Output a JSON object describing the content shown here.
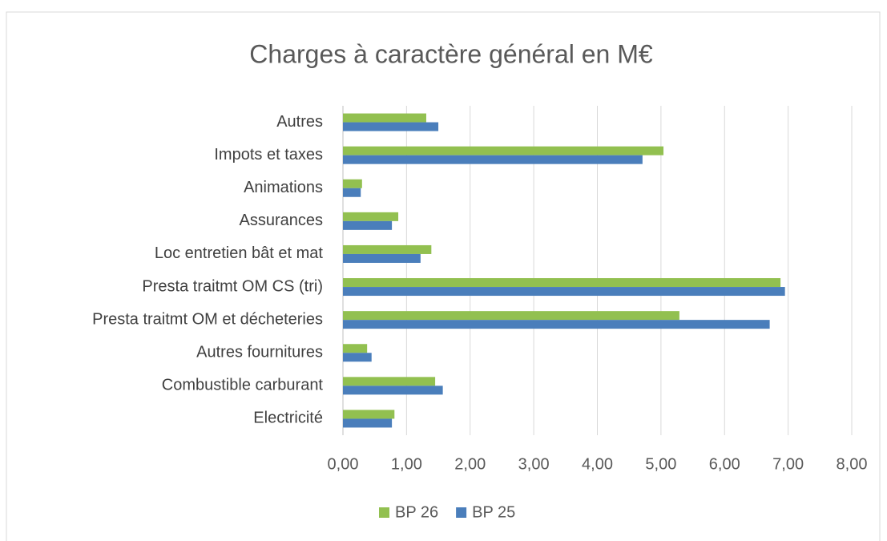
{
  "chart_data": {
    "type": "hbar",
    "title": "Charges à caractère général en M€",
    "categories": [
      "Electricité",
      "Combustible carburant",
      "Autres fournitures",
      "Presta traitmt OM et décheteries",
      "Presta traitmt OM CS (tri)",
      "Loc entretien bât et mat",
      "Assurances",
      "Animations",
      "Impots et taxes",
      "Autres"
    ],
    "series": [
      {
        "name": "BP 26",
        "color": "#92c050",
        "values": [
          0.81,
          1.45,
          0.38,
          5.29,
          6.88,
          1.39,
          0.87,
          0.3,
          5.04,
          1.31
        ]
      },
      {
        "name": "BP 25",
        "color": "#4a7ebb",
        "values": [
          0.77,
          1.57,
          0.45,
          6.71,
          6.95,
          1.22,
          0.77,
          0.28,
          4.71,
          1.5
        ]
      }
    ],
    "xlim": [
      0,
      8
    ],
    "xticks": [
      {
        "value": 0,
        "label": "0,00"
      },
      {
        "value": 1,
        "label": "1,00"
      },
      {
        "value": 2,
        "label": "2,00"
      },
      {
        "value": 3,
        "label": "3,00"
      },
      {
        "value": 4,
        "label": "4,00"
      },
      {
        "value": 5,
        "label": "5,00"
      },
      {
        "value": 6,
        "label": "6,00"
      },
      {
        "value": 7,
        "label": "7,00"
      },
      {
        "value": 8,
        "label": "8,00"
      }
    ],
    "grid": true,
    "legend": "bottom"
  }
}
